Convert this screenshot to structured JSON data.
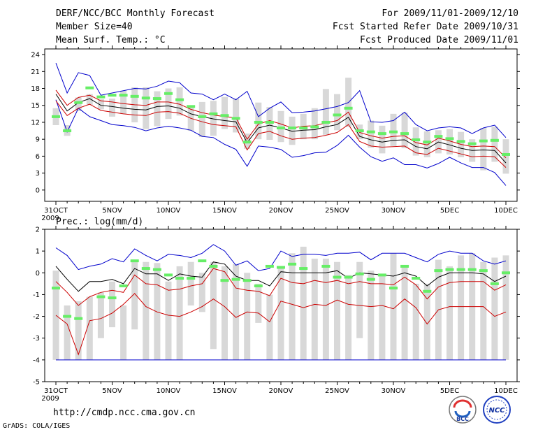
{
  "header": {
    "title": "DERF/NCC/BCC Monthly Forecast",
    "member_size": "Member Size=40",
    "variable": "Mean Surf. Temp.: °C",
    "period": "For 2009/11/01-2009/12/10",
    "refer_date": "Fcst Started Refer Date 2009/10/31",
    "produced_date": "Fcst Produced Date 2009/11/01"
  },
  "footer": {
    "url": "http://cmdp.ncc.cma.gov.cn",
    "grads": "GrADS: COLA/IGES",
    "logo_bcc": "BCC",
    "logo_ncc": "NCC"
  },
  "colors": {
    "max": "#0000cc",
    "min": "#0000cc",
    "mean": "#000000",
    "spread": "#cc0000",
    "box": "#d8d8d8",
    "obs": "#66ee66"
  },
  "chart_data": [
    {
      "type": "line",
      "title": "Mean Surf. Temp.: °C",
      "ylabel": "°C",
      "ylim": [
        -2,
        25
      ],
      "yticks": [
        0,
        3,
        6,
        9,
        12,
        15,
        18,
        21,
        24
      ],
      "xticks": [
        "31OCT",
        "5NOV",
        "10NOV",
        "15NOV",
        "20NOV",
        "25NOV",
        "30NOV",
        "5DEC",
        "10DEC"
      ],
      "xsub": "2009",
      "days": 41,
      "series": [
        {
          "name": "max",
          "values": [
            22.5,
            17.2,
            20.8,
            20.3,
            16.8,
            17.2,
            17.6,
            18.0,
            17.9,
            18.4,
            19.3,
            19.0,
            17.2,
            17.0,
            16.0,
            17.0,
            16.0,
            17.5,
            13.0,
            14.5,
            15.6,
            13.7,
            13.8,
            14.0,
            14.4,
            14.8,
            15.5,
            17.6,
            12.1,
            12.0,
            12.3,
            13.8,
            11.6,
            10.5,
            11.0,
            11.2,
            11.0,
            10.0,
            11.0,
            11.5,
            9.3
          ]
        },
        {
          "name": "mean",
          "values": [
            17.0,
            14.0,
            15.5,
            16.2,
            15.0,
            14.8,
            14.5,
            14.3,
            14.2,
            14.8,
            14.9,
            14.5,
            13.5,
            13.0,
            12.6,
            12.3,
            12.1,
            8.4,
            11.0,
            11.5,
            11.0,
            10.4,
            10.6,
            10.7,
            11.2,
            11.6,
            12.9,
            9.5,
            8.9,
            8.5,
            8.8,
            8.9,
            7.7,
            7.3,
            8.5,
            8.0,
            7.4,
            7.0,
            7.1,
            7.0,
            4.8
          ]
        },
        {
          "name": "upper",
          "values": [
            17.7,
            15.0,
            16.4,
            16.8,
            15.8,
            15.6,
            15.3,
            15.1,
            15.0,
            15.6,
            15.6,
            15.2,
            14.3,
            13.7,
            13.3,
            13.0,
            12.8,
            9.0,
            11.7,
            12.3,
            11.7,
            11.0,
            11.3,
            11.4,
            11.9,
            12.3,
            13.8,
            10.2,
            9.6,
            9.2,
            9.5,
            9.6,
            8.4,
            8.0,
            9.2,
            8.7,
            8.1,
            7.7,
            7.8,
            7.7,
            5.7
          ]
        },
        {
          "name": "lower",
          "values": [
            15.8,
            13.2,
            14.5,
            15.2,
            14.1,
            13.8,
            13.5,
            13.3,
            13.2,
            13.8,
            13.9,
            13.6,
            12.7,
            12.1,
            11.6,
            11.4,
            11.2,
            7.1,
            10.0,
            10.4,
            9.6,
            9.0,
            9.2,
            9.3,
            9.7,
            10.2,
            11.6,
            8.6,
            7.8,
            7.6,
            7.7,
            7.8,
            6.6,
            6.3,
            7.4,
            6.9,
            6.4,
            5.9,
            6.0,
            5.9,
            4.0
          ]
        },
        {
          "name": "min",
          "values": [
            16.0,
            10.3,
            14.5,
            13.0,
            12.3,
            11.6,
            11.4,
            11.1,
            10.5,
            11.0,
            11.3,
            11.0,
            10.6,
            9.5,
            9.3,
            8.1,
            7.2,
            4.2,
            7.8,
            7.6,
            7.2,
            5.8,
            6.1,
            6.6,
            6.7,
            7.9,
            9.7,
            7.6,
            5.9,
            5.1,
            5.7,
            4.5,
            4.5,
            3.9,
            4.7,
            5.8,
            4.8,
            4.0,
            4.0,
            3.1,
            0.8
          ]
        },
        {
          "name": "box_top",
          "values": [
            14.5,
            11.5,
            16.4,
            17.0,
            16.1,
            16.2,
            17.6,
            18.2,
            18.2,
            17.5,
            18.0,
            18.2,
            15.0,
            15.6,
            15.8,
            16.5,
            16.2,
            10.0,
            15.5,
            14.7,
            14.0,
            13.0,
            13.5,
            14.5,
            17.9,
            17.0,
            19.9,
            11.6,
            12.3,
            11.4,
            13.5,
            13.7,
            11.1,
            10.4,
            10.6,
            10.8,
            10.3,
            9.0,
            11.0,
            11.2,
            9.0
          ]
        },
        {
          "name": "box_bottom",
          "values": [
            11.5,
            9.6,
            14.0,
            15.1,
            14.3,
            13.0,
            13.5,
            12.0,
            10.8,
            11.3,
            12.6,
            13.2,
            10.5,
            9.4,
            9.6,
            10.8,
            10.2,
            7.3,
            9.0,
            8.9,
            8.5,
            8.0,
            9.0,
            9.0,
            9.8,
            10.6,
            11.2,
            9.0,
            7.5,
            6.5,
            7.8,
            7.4,
            6.1,
            5.8,
            6.5,
            6.3,
            5.8,
            5.0,
            3.5,
            5.0,
            2.9
          ]
        },
        {
          "name": "observation",
          "values": [
            13.0,
            10.5,
            15.5,
            18.1,
            16.5,
            16.8,
            16.8,
            16.6,
            16.3,
            16.2,
            17.1,
            16.0,
            14.8,
            13.0,
            13.5,
            13.2,
            12.7,
            8.5,
            12.0,
            12.0,
            11.0,
            11.0,
            11.0,
            11.2,
            12.0,
            13.3,
            14.5,
            10.5,
            10.3,
            10.0,
            10.3,
            10.0,
            8.9,
            8.5,
            9.5,
            9.1,
            8.6,
            8.2,
            8.7,
            8.8,
            6.3
          ]
        }
      ]
    },
    {
      "type": "line",
      "title": "Prec.: log(mm/d)",
      "ylabel": "log(mm/d)",
      "ylim": [
        -5,
        2
      ],
      "yticks": [
        -5,
        -4,
        -3,
        -2,
        -1,
        0,
        1,
        2
      ],
      "xticks": [
        "31OCT",
        "5NOV",
        "10NOV",
        "15NOV",
        "20NOV",
        "25NOV",
        "30NOV",
        "5DEC",
        "10DEC"
      ],
      "xsub": "2009",
      "days": 41,
      "series": [
        {
          "name": "max",
          "values": [
            1.15,
            0.8,
            0.15,
            0.3,
            0.4,
            0.65,
            0.5,
            1.1,
            0.8,
            0.55,
            0.85,
            0.8,
            0.7,
            0.9,
            1.3,
            1.0,
            0.35,
            0.55,
            0.1,
            0.2,
            1.0,
            0.75,
            0.85,
            0.85,
            0.8,
            0.9,
            0.9,
            0.95,
            0.6,
            0.9,
            0.9,
            0.9,
            0.7,
            0.5,
            0.85,
            1.0,
            0.9,
            0.9,
            0.55,
            0.4,
            0.55
          ]
        },
        {
          "name": "mean",
          "values": [
            0.3,
            -0.3,
            -0.85,
            -0.4,
            -0.4,
            -0.3,
            -0.5,
            0.2,
            -0.05,
            -0.05,
            -0.35,
            -0.05,
            -0.15,
            -0.2,
            0.5,
            0.4,
            -0.15,
            -0.35,
            -0.35,
            -0.6,
            0.05,
            0.0,
            0.0,
            0.0,
            0.0,
            0.1,
            -0.25,
            0.0,
            -0.05,
            -0.1,
            -0.15,
            0.0,
            -0.15,
            -0.6,
            -0.2,
            0.0,
            0.0,
            0.0,
            -0.05,
            -0.4,
            -0.15
          ]
        },
        {
          "name": "upper",
          "values": [
            -0.4,
            -0.9,
            -1.5,
            -1.1,
            -0.9,
            -0.8,
            -0.9,
            -0.1,
            -0.5,
            -0.55,
            -0.8,
            -0.75,
            -0.6,
            -0.5,
            0.2,
            0.05,
            -0.7,
            -0.8,
            -0.85,
            -1.05,
            -0.25,
            -0.45,
            -0.5,
            -0.35,
            -0.45,
            -0.35,
            -0.5,
            -0.4,
            -0.5,
            -0.5,
            -0.55,
            -0.2,
            -0.55,
            -1.2,
            -0.65,
            -0.45,
            -0.4,
            -0.4,
            -0.4,
            -0.8,
            -0.55
          ]
        },
        {
          "name": "lower",
          "values": [
            -1.95,
            -2.35,
            -3.75,
            -2.2,
            -2.1,
            -1.85,
            -1.45,
            -0.95,
            -1.55,
            -1.8,
            -1.95,
            -2.0,
            -1.8,
            -1.55,
            -1.2,
            -1.55,
            -2.05,
            -1.8,
            -1.85,
            -2.25,
            -1.3,
            -1.45,
            -1.6,
            -1.45,
            -1.5,
            -1.25,
            -1.45,
            -1.5,
            -1.55,
            -1.5,
            -1.65,
            -1.2,
            -1.6,
            -2.35,
            -1.7,
            -1.55,
            -1.55,
            -1.55,
            -1.55,
            -2.0,
            -1.8
          ]
        },
        {
          "name": "min",
          "values": [
            -4.0,
            -4.0,
            -4.0,
            -4.0,
            -4.0,
            -4.0,
            -4.0,
            -4.0,
            -4.0,
            -4.0,
            -4.0,
            -4.0,
            -4.0,
            -4.0,
            -4.0,
            -4.0,
            -4.0,
            -4.0,
            -4.0,
            -4.0,
            -4.0,
            -4.0,
            -4.0,
            -4.0,
            -4.0,
            -4.0,
            -4.0,
            -4.0,
            -4.0,
            -4.0,
            -4.0,
            -4.0,
            -4.0,
            -4.0,
            -4.0,
            -4.0,
            -4.0,
            -4.0,
            -4.0,
            -4.0,
            -4.0
          ]
        },
        {
          "name": "box_top",
          "values": [
            0.1,
            -1.5,
            -1.3,
            -1.1,
            -0.9,
            -0.4,
            -1.5,
            0.6,
            0.5,
            0.45,
            -0.4,
            0.3,
            0.5,
            0.0,
            0.5,
            0.3,
            0.4,
            0.0,
            -0.5,
            -1.0,
            0.3,
            0.9,
            1.2,
            0.65,
            0.65,
            0.5,
            -0.1,
            0.5,
            0.1,
            -0.1,
            0.9,
            0.3,
            -0.5,
            -0.5,
            0.6,
            0.3,
            0.8,
            0.9,
            0.5,
            0.7,
            0.8
          ]
        },
        {
          "name": "box_bottom",
          "values": [
            -4.0,
            -4.0,
            -4.0,
            -4.0,
            -3.0,
            -2.5,
            -4.0,
            -2.6,
            -4.0,
            -4.0,
            -4.0,
            -4.0,
            -1.5,
            -1.8,
            -3.5,
            -4.0,
            -4.0,
            -4.0,
            -2.3,
            -4.0,
            -4.0,
            -4.0,
            -4.0,
            -4.0,
            -4.0,
            -4.0,
            -4.0,
            -3.0,
            -4.0,
            -4.0,
            -4.0,
            -4.0,
            -4.0,
            -4.0,
            -4.0,
            -4.0,
            -4.0,
            -4.0,
            -4.0,
            -4.0,
            -4.0
          ]
        },
        {
          "name": "observation",
          "values": [
            -0.7,
            -2.0,
            -2.1,
            null,
            -1.1,
            -1.15,
            -0.6,
            0.55,
            0.2,
            0.15,
            -0.1,
            -0.25,
            -0.25,
            0.55,
            0.3,
            -0.35,
            -0.3,
            -0.35,
            -0.6,
            0.3,
            0.25,
            0.4,
            0.2,
            null,
            0.3,
            -0.2,
            -0.2,
            -0.05,
            -0.3,
            -0.1,
            -0.7,
            0.3,
            -0.25,
            -0.85,
            0.1,
            0.15,
            0.15,
            0.15,
            0.1,
            -0.5,
            0.0
          ]
        }
      ]
    }
  ]
}
